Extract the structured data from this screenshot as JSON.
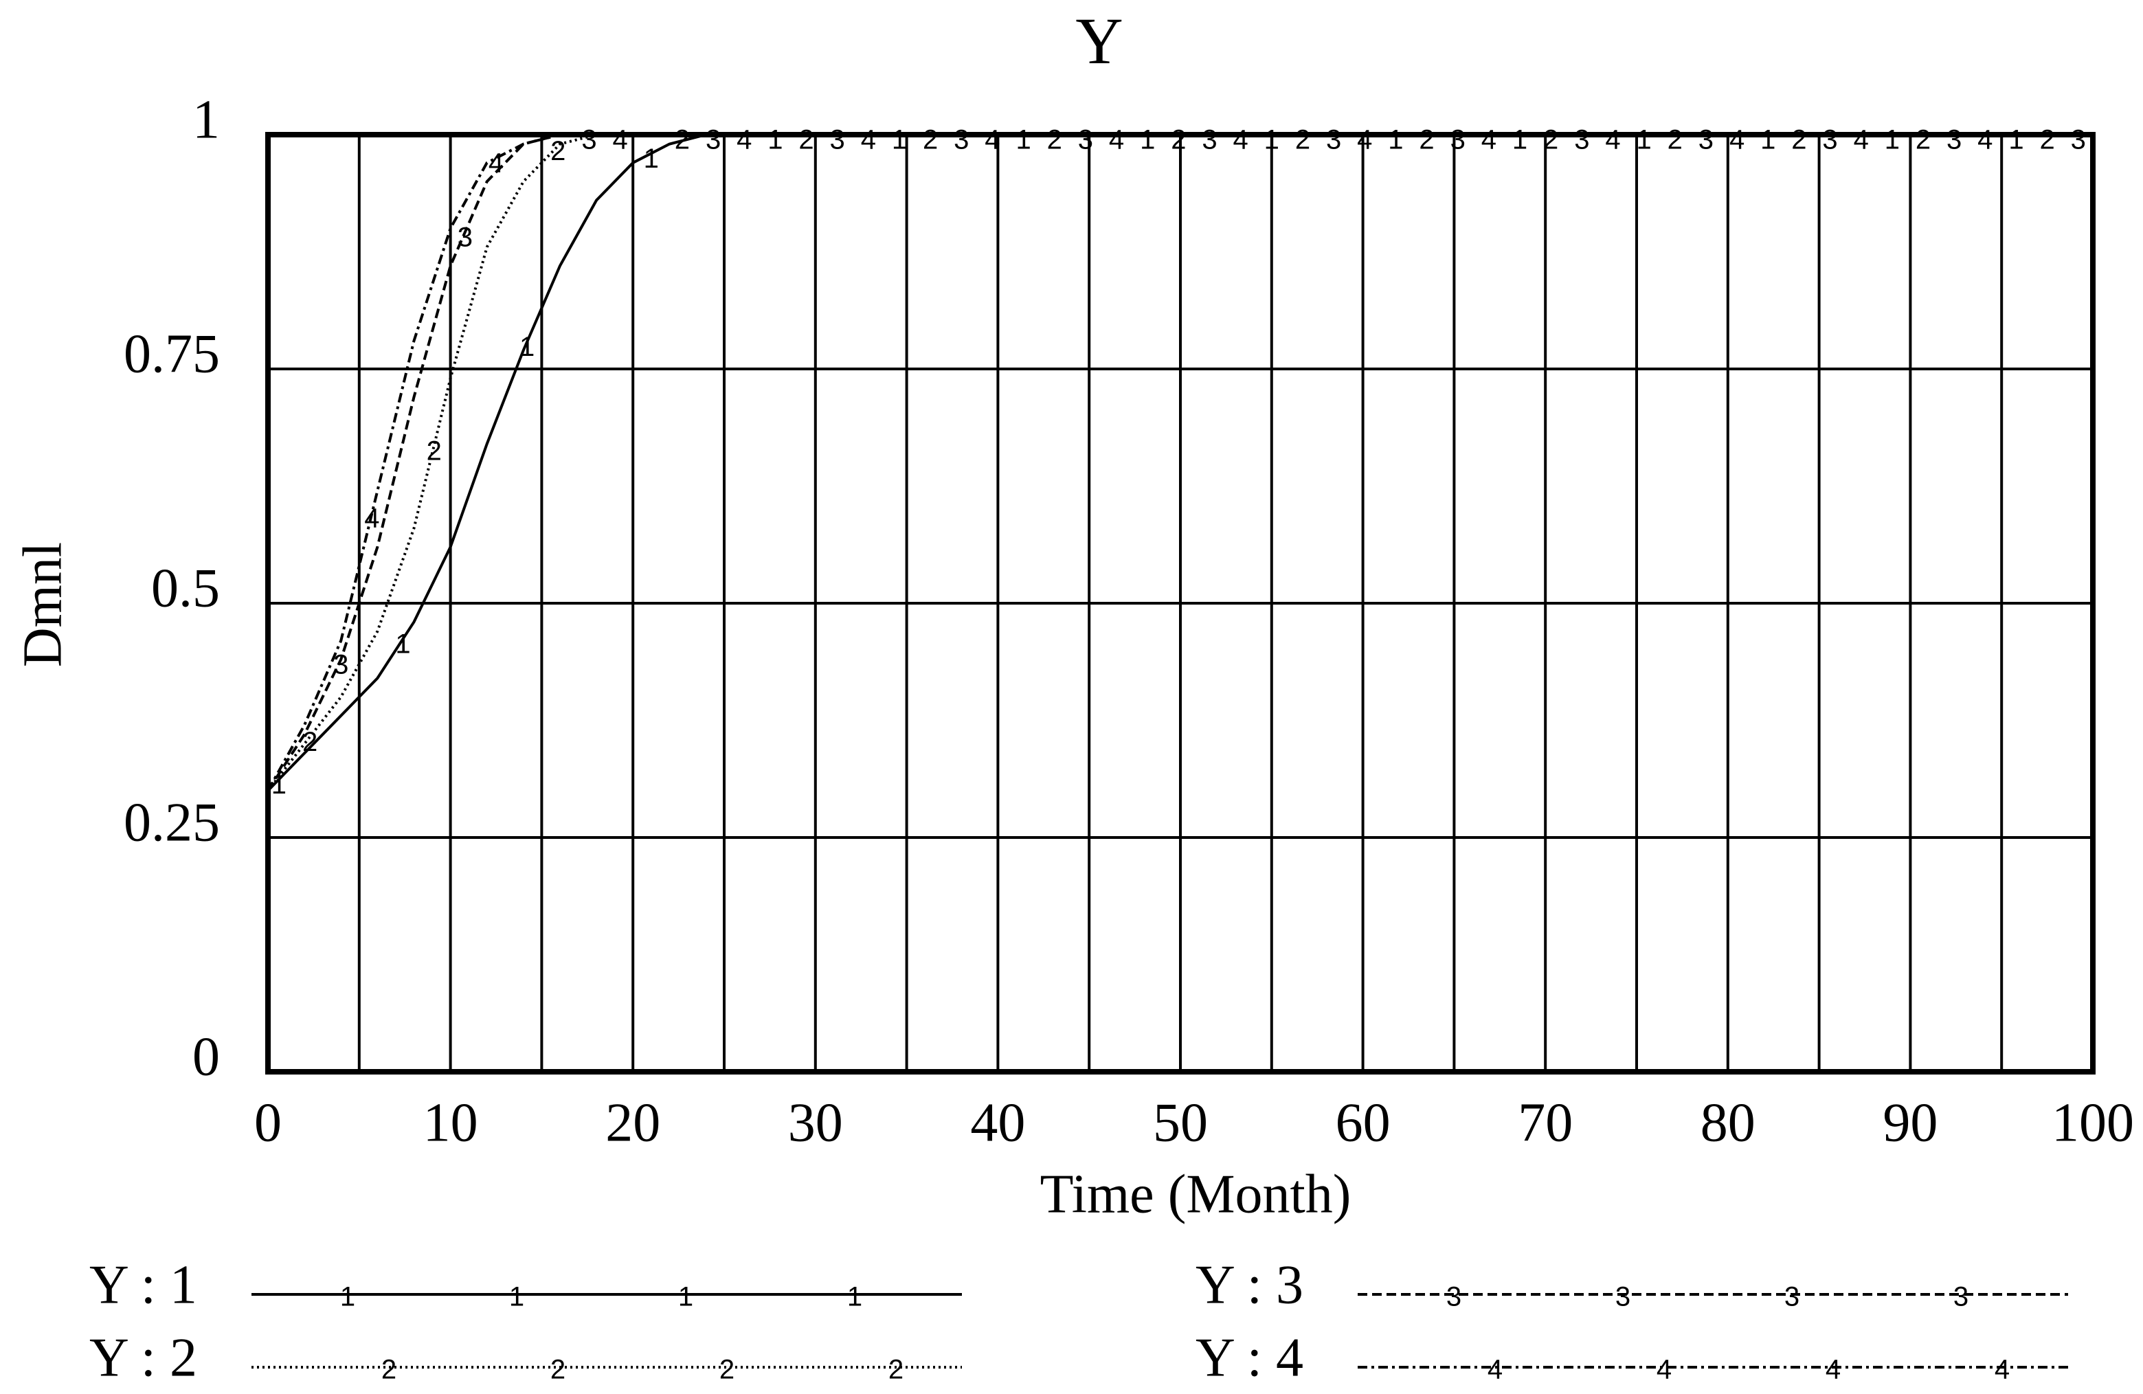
{
  "chart_data": {
    "type": "line",
    "title": "Y",
    "xlabel": "Time (Month)",
    "ylabel": "Dmnl",
    "x": [
      0,
      2,
      4,
      6,
      8,
      10,
      12,
      14,
      16,
      18,
      20,
      22,
      24,
      26,
      30,
      40,
      50,
      60,
      70,
      80,
      90,
      100
    ],
    "series": [
      {
        "name": "Y : 1",
        "marker": "1",
        "color": "#000000",
        "dash": "solid",
        "values": [
          0.3,
          0.34,
          0.38,
          0.42,
          0.48,
          0.56,
          0.67,
          0.77,
          0.86,
          0.93,
          0.97,
          0.99,
          1.0,
          1.0,
          1.0,
          1.0,
          1.0,
          1.0,
          1.0,
          1.0,
          1.0,
          1.0
        ]
      },
      {
        "name": "Y : 2",
        "marker": "2",
        "color": "#000000",
        "dash": "dotted",
        "values": [
          0.3,
          0.35,
          0.4,
          0.47,
          0.58,
          0.74,
          0.88,
          0.95,
          0.99,
          1.0,
          1.0,
          1.0,
          1.0,
          1.0,
          1.0,
          1.0,
          1.0,
          1.0,
          1.0,
          1.0,
          1.0,
          1.0
        ]
      },
      {
        "name": "Y : 3",
        "marker": "3",
        "color": "#000000",
        "dash": "dashed",
        "values": [
          0.3,
          0.36,
          0.44,
          0.56,
          0.72,
          0.86,
          0.95,
          0.99,
          1.0,
          1.0,
          1.0,
          1.0,
          1.0,
          1.0,
          1.0,
          1.0,
          1.0,
          1.0,
          1.0,
          1.0,
          1.0,
          1.0
        ]
      },
      {
        "name": "Y : 4",
        "marker": "4",
        "color": "#000000",
        "dash": "dashdot",
        "values": [
          0.3,
          0.37,
          0.46,
          0.62,
          0.78,
          0.9,
          0.97,
          0.99,
          1.0,
          1.0,
          1.0,
          1.0,
          1.0,
          1.0,
          1.0,
          1.0,
          1.0,
          1.0,
          1.0,
          1.0,
          1.0,
          1.0
        ]
      }
    ],
    "xlim": [
      0,
      100
    ],
    "xticks": [
      0,
      10,
      20,
      30,
      40,
      50,
      60,
      70,
      80,
      90,
      100
    ],
    "xminorticks": [
      5,
      15,
      25,
      35,
      45,
      55,
      65,
      75,
      85,
      95
    ],
    "ylim": [
      0,
      1
    ],
    "yticks": [
      0,
      0.25,
      0.5,
      0.75,
      1
    ],
    "grid": true,
    "legend": "bottom"
  }
}
